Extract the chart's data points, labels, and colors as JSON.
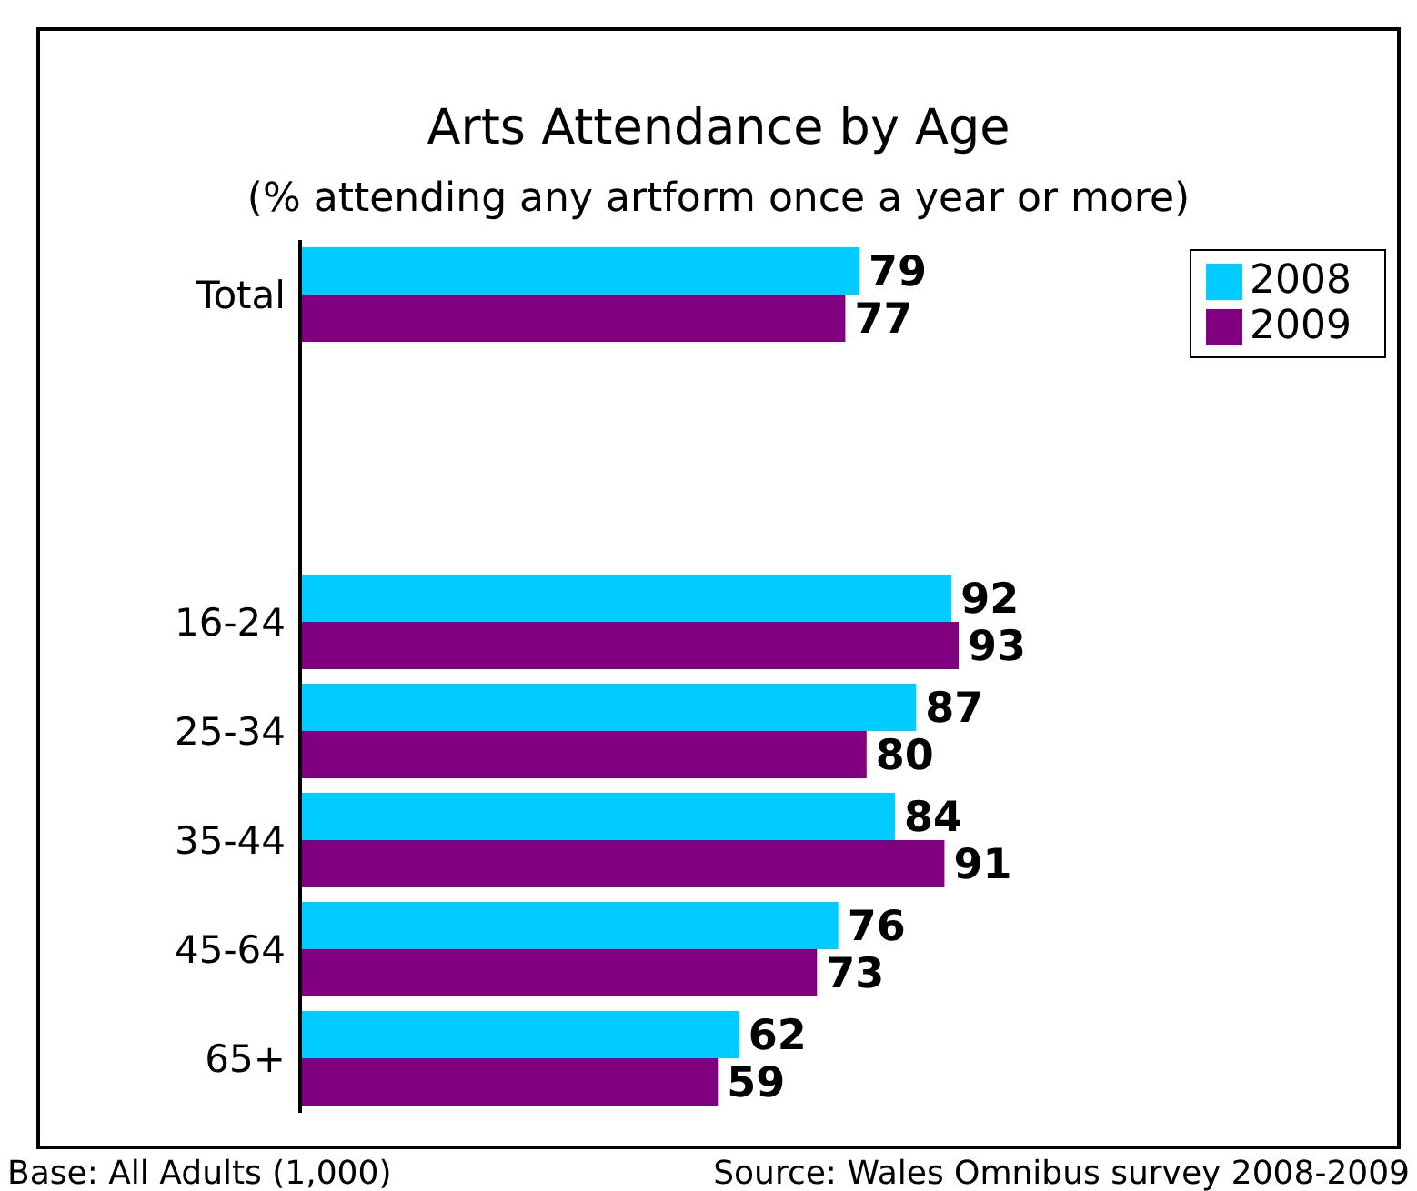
{
  "chart_data": {
    "type": "bar",
    "orientation": "horizontal",
    "title": "Arts Attendance by Age",
    "subtitle": "(% attending any artform once a year or more)",
    "categories": [
      "Total",
      null,
      null,
      "16-24",
      "25-34",
      "35-44",
      "45-64",
      "65+"
    ],
    "series": [
      {
        "name": "2008",
        "color": "#00ccff",
        "values": [
          79,
          null,
          null,
          92,
          87,
          84,
          76,
          62
        ]
      },
      {
        "name": "2009",
        "color": "#800080",
        "values": [
          77,
          null,
          null,
          93,
          80,
          91,
          73,
          59
        ]
      }
    ],
    "data_labels": true,
    "legend": "top right",
    "annotations": [
      "Base: All Adults (1,000)",
      "Source: Wales Omnibus survey 2008-2009"
    ]
  }
}
